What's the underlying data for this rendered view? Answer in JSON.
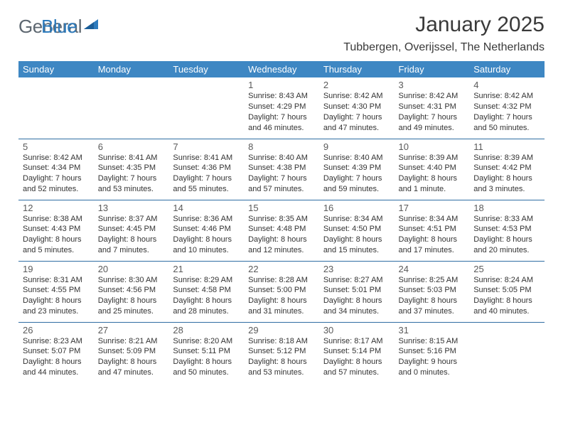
{
  "logo": {
    "text1": "General",
    "text2": "Blue"
  },
  "title": "January 2025",
  "location": "Tubbergen, Overijssel, The Netherlands",
  "colors": {
    "header_bg": "#3e87c3",
    "header_text": "#ffffff",
    "row_divider": "#2f6da3",
    "logo_gray": "#5d6770",
    "logo_blue": "#2d7bbd",
    "text_dark": "#3a3a3a"
  },
  "weekdays": [
    "Sunday",
    "Monday",
    "Tuesday",
    "Wednesday",
    "Thursday",
    "Friday",
    "Saturday"
  ],
  "days": [
    null,
    null,
    null,
    {
      "n": "1",
      "sr": "8:43 AM",
      "ss": "4:29 PM",
      "dl": "7 hours and 46 minutes."
    },
    {
      "n": "2",
      "sr": "8:42 AM",
      "ss": "4:30 PM",
      "dl": "7 hours and 47 minutes."
    },
    {
      "n": "3",
      "sr": "8:42 AM",
      "ss": "4:31 PM",
      "dl": "7 hours and 49 minutes."
    },
    {
      "n": "4",
      "sr": "8:42 AM",
      "ss": "4:32 PM",
      "dl": "7 hours and 50 minutes."
    },
    {
      "n": "5",
      "sr": "8:42 AM",
      "ss": "4:34 PM",
      "dl": "7 hours and 52 minutes."
    },
    {
      "n": "6",
      "sr": "8:41 AM",
      "ss": "4:35 PM",
      "dl": "7 hours and 53 minutes."
    },
    {
      "n": "7",
      "sr": "8:41 AM",
      "ss": "4:36 PM",
      "dl": "7 hours and 55 minutes."
    },
    {
      "n": "8",
      "sr": "8:40 AM",
      "ss": "4:38 PM",
      "dl": "7 hours and 57 minutes."
    },
    {
      "n": "9",
      "sr": "8:40 AM",
      "ss": "4:39 PM",
      "dl": "7 hours and 59 minutes."
    },
    {
      "n": "10",
      "sr": "8:39 AM",
      "ss": "4:40 PM",
      "dl": "8 hours and 1 minute."
    },
    {
      "n": "11",
      "sr": "8:39 AM",
      "ss": "4:42 PM",
      "dl": "8 hours and 3 minutes."
    },
    {
      "n": "12",
      "sr": "8:38 AM",
      "ss": "4:43 PM",
      "dl": "8 hours and 5 minutes."
    },
    {
      "n": "13",
      "sr": "8:37 AM",
      "ss": "4:45 PM",
      "dl": "8 hours and 7 minutes."
    },
    {
      "n": "14",
      "sr": "8:36 AM",
      "ss": "4:46 PM",
      "dl": "8 hours and 10 minutes."
    },
    {
      "n": "15",
      "sr": "8:35 AM",
      "ss": "4:48 PM",
      "dl": "8 hours and 12 minutes."
    },
    {
      "n": "16",
      "sr": "8:34 AM",
      "ss": "4:50 PM",
      "dl": "8 hours and 15 minutes."
    },
    {
      "n": "17",
      "sr": "8:34 AM",
      "ss": "4:51 PM",
      "dl": "8 hours and 17 minutes."
    },
    {
      "n": "18",
      "sr": "8:33 AM",
      "ss": "4:53 PM",
      "dl": "8 hours and 20 minutes."
    },
    {
      "n": "19",
      "sr": "8:31 AM",
      "ss": "4:55 PM",
      "dl": "8 hours and 23 minutes."
    },
    {
      "n": "20",
      "sr": "8:30 AM",
      "ss": "4:56 PM",
      "dl": "8 hours and 25 minutes."
    },
    {
      "n": "21",
      "sr": "8:29 AM",
      "ss": "4:58 PM",
      "dl": "8 hours and 28 minutes."
    },
    {
      "n": "22",
      "sr": "8:28 AM",
      "ss": "5:00 PM",
      "dl": "8 hours and 31 minutes."
    },
    {
      "n": "23",
      "sr": "8:27 AM",
      "ss": "5:01 PM",
      "dl": "8 hours and 34 minutes."
    },
    {
      "n": "24",
      "sr": "8:25 AM",
      "ss": "5:03 PM",
      "dl": "8 hours and 37 minutes."
    },
    {
      "n": "25",
      "sr": "8:24 AM",
      "ss": "5:05 PM",
      "dl": "8 hours and 40 minutes."
    },
    {
      "n": "26",
      "sr": "8:23 AM",
      "ss": "5:07 PM",
      "dl": "8 hours and 44 minutes."
    },
    {
      "n": "27",
      "sr": "8:21 AM",
      "ss": "5:09 PM",
      "dl": "8 hours and 47 minutes."
    },
    {
      "n": "28",
      "sr": "8:20 AM",
      "ss": "5:11 PM",
      "dl": "8 hours and 50 minutes."
    },
    {
      "n": "29",
      "sr": "8:18 AM",
      "ss": "5:12 PM",
      "dl": "8 hours and 53 minutes."
    },
    {
      "n": "30",
      "sr": "8:17 AM",
      "ss": "5:14 PM",
      "dl": "8 hours and 57 minutes."
    },
    {
      "n": "31",
      "sr": "8:15 AM",
      "ss": "5:16 PM",
      "dl": "9 hours and 0 minutes."
    },
    null,
    null,
    null
  ],
  "labels": {
    "sunrise": "Sunrise:",
    "sunset": "Sunset:",
    "daylight": "Daylight:"
  }
}
